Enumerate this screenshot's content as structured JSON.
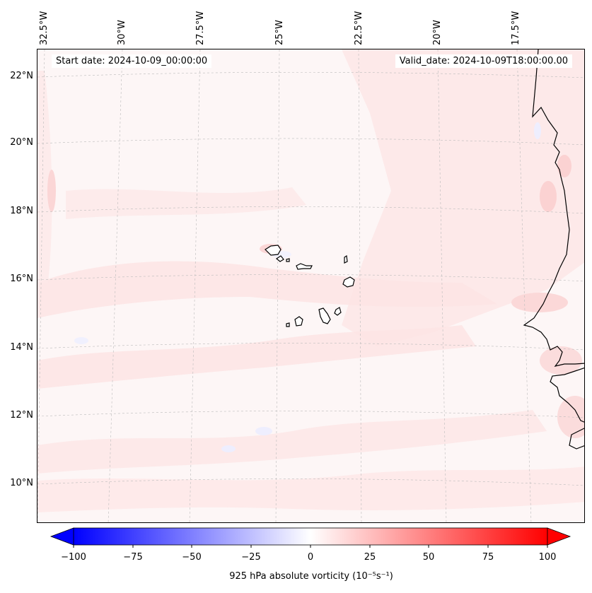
{
  "header": {
    "start_date": "Start date: 2024-10-09_00:00:00",
    "valid_date": "Valid_date: 2024-10-09T18:00:00.00"
  },
  "map": {
    "longitude_labels": [
      "32.5°W",
      "30°W",
      "27.5°W",
      "25°W",
      "22.5°W",
      "20°W",
      "17.5°W"
    ],
    "latitude_labels": [
      "22°N",
      "20°N",
      "18°N",
      "16°N",
      "14°N",
      "12°N",
      "10°N"
    ],
    "field": "925 hPa absolute vorticity",
    "colors": {
      "background": "#fdf6f6",
      "light_red": "#fde4e4",
      "medium_red": "#fbd2d2",
      "light_blue": "#eeeefe",
      "coast": "#000000",
      "grid": "#bbbbbb"
    }
  },
  "colorbar": {
    "ticks": [
      "−100",
      "−75",
      "−50",
      "−25",
      "0",
      "25",
      "50",
      "75",
      "100"
    ],
    "label": "925 hPa absolute vorticity",
    "label_units": "(10⁻⁵s⁻¹)",
    "min": -100,
    "max": 100,
    "colors": {
      "negative": "#0000ff",
      "zero": "#ffffff",
      "positive": "#ff0000"
    }
  }
}
